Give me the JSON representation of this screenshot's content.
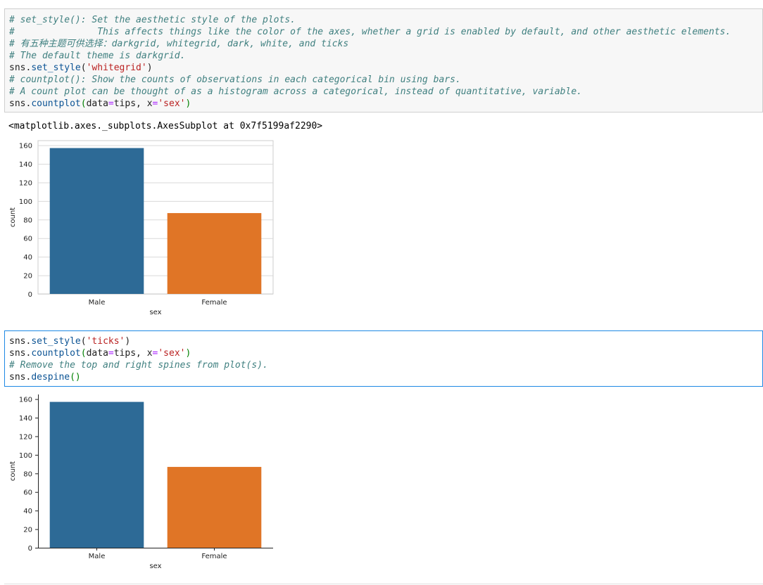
{
  "cells": [
    {
      "lines": [
        [
          {
            "t": "# set_style(): Set the aesthetic style of the plots.",
            "c": "c"
          }
        ],
        [
          {
            "t": "#               This affects things like the color of the axes, whether a grid is enabled by default, and other aesthetic elements.",
            "c": "c"
          }
        ],
        [
          {
            "t": "# 有五种主题可供选择：darkgrid, whitegrid, dark, white, and ticks",
            "c": "c"
          }
        ],
        [
          {
            "t": "# The default theme is darkgrid.",
            "c": "c"
          }
        ],
        [
          {
            "t": "sns.",
            "c": ""
          },
          {
            "t": "set_style",
            "c": "fn"
          },
          {
            "t": "(",
            "c": ""
          },
          {
            "t": "'whitegrid'",
            "c": "str"
          },
          {
            "t": ")",
            "c": ""
          }
        ],
        [
          {
            "t": "# countplot(): Show the counts of observations in each categorical bin using bars.",
            "c": "c"
          }
        ],
        [
          {
            "t": "# A count plot can be thought of as a histogram across a categorical, instead of quantitative, variable.",
            "c": "c"
          }
        ],
        [
          {
            "t": "sns.",
            "c": ""
          },
          {
            "t": "countplot",
            "c": "fn"
          },
          {
            "t": "(",
            "c": "par"
          },
          {
            "t": "data",
            "c": ""
          },
          {
            "t": "=",
            "c": "op"
          },
          {
            "t": "tips, x",
            "c": ""
          },
          {
            "t": "=",
            "c": "op"
          },
          {
            "t": "'sex'",
            "c": "str"
          },
          {
            "t": ")",
            "c": "par"
          }
        ]
      ]
    },
    {
      "lines": [
        [
          {
            "t": "sns.",
            "c": ""
          },
          {
            "t": "set_style",
            "c": "fn"
          },
          {
            "t": "(",
            "c": ""
          },
          {
            "t": "'ticks'",
            "c": "str"
          },
          {
            "t": ")",
            "c": ""
          }
        ],
        [
          {
            "t": "sns.",
            "c": ""
          },
          {
            "t": "countplot",
            "c": "fn"
          },
          {
            "t": "(",
            "c": "par"
          },
          {
            "t": "data",
            "c": ""
          },
          {
            "t": "=",
            "c": "op"
          },
          {
            "t": "tips, x",
            "c": ""
          },
          {
            "t": "=",
            "c": "op"
          },
          {
            "t": "'sex'",
            "c": "str"
          },
          {
            "t": ")",
            "c": "par"
          }
        ],
        [
          {
            "t": "# Remove the top and right spines from plot(s).",
            "c": "c"
          }
        ],
        [
          {
            "t": "sns.",
            "c": ""
          },
          {
            "t": "despine",
            "c": "fn"
          },
          {
            "t": "()",
            "c": "par"
          }
        ]
      ]
    }
  ],
  "output_text": "<matplotlib.axes._subplots.AxesSubplot at 0x7f5199af2290>",
  "chart_data": [
    {
      "type": "bar",
      "style": "whitegrid",
      "categories": [
        "Male",
        "Female"
      ],
      "values": [
        157,
        87
      ],
      "colors": [
        "#2d6a96",
        "#e07526"
      ],
      "xlabel": "sex",
      "ylabel": "count",
      "ylim": [
        0,
        165
      ],
      "yticks": [
        "0",
        "20",
        "40",
        "60",
        "80",
        "100",
        "120",
        "140",
        "160"
      ],
      "grid": true,
      "despine": false
    },
    {
      "type": "bar",
      "style": "ticks",
      "categories": [
        "Male",
        "Female"
      ],
      "values": [
        157,
        87
      ],
      "colors": [
        "#2d6a96",
        "#e07526"
      ],
      "xlabel": "sex",
      "ylabel": "count",
      "ylim": [
        0,
        165
      ],
      "yticks": [
        "0",
        "20",
        "40",
        "60",
        "80",
        "100",
        "120",
        "140",
        "160"
      ],
      "grid": false,
      "despine": true
    }
  ]
}
